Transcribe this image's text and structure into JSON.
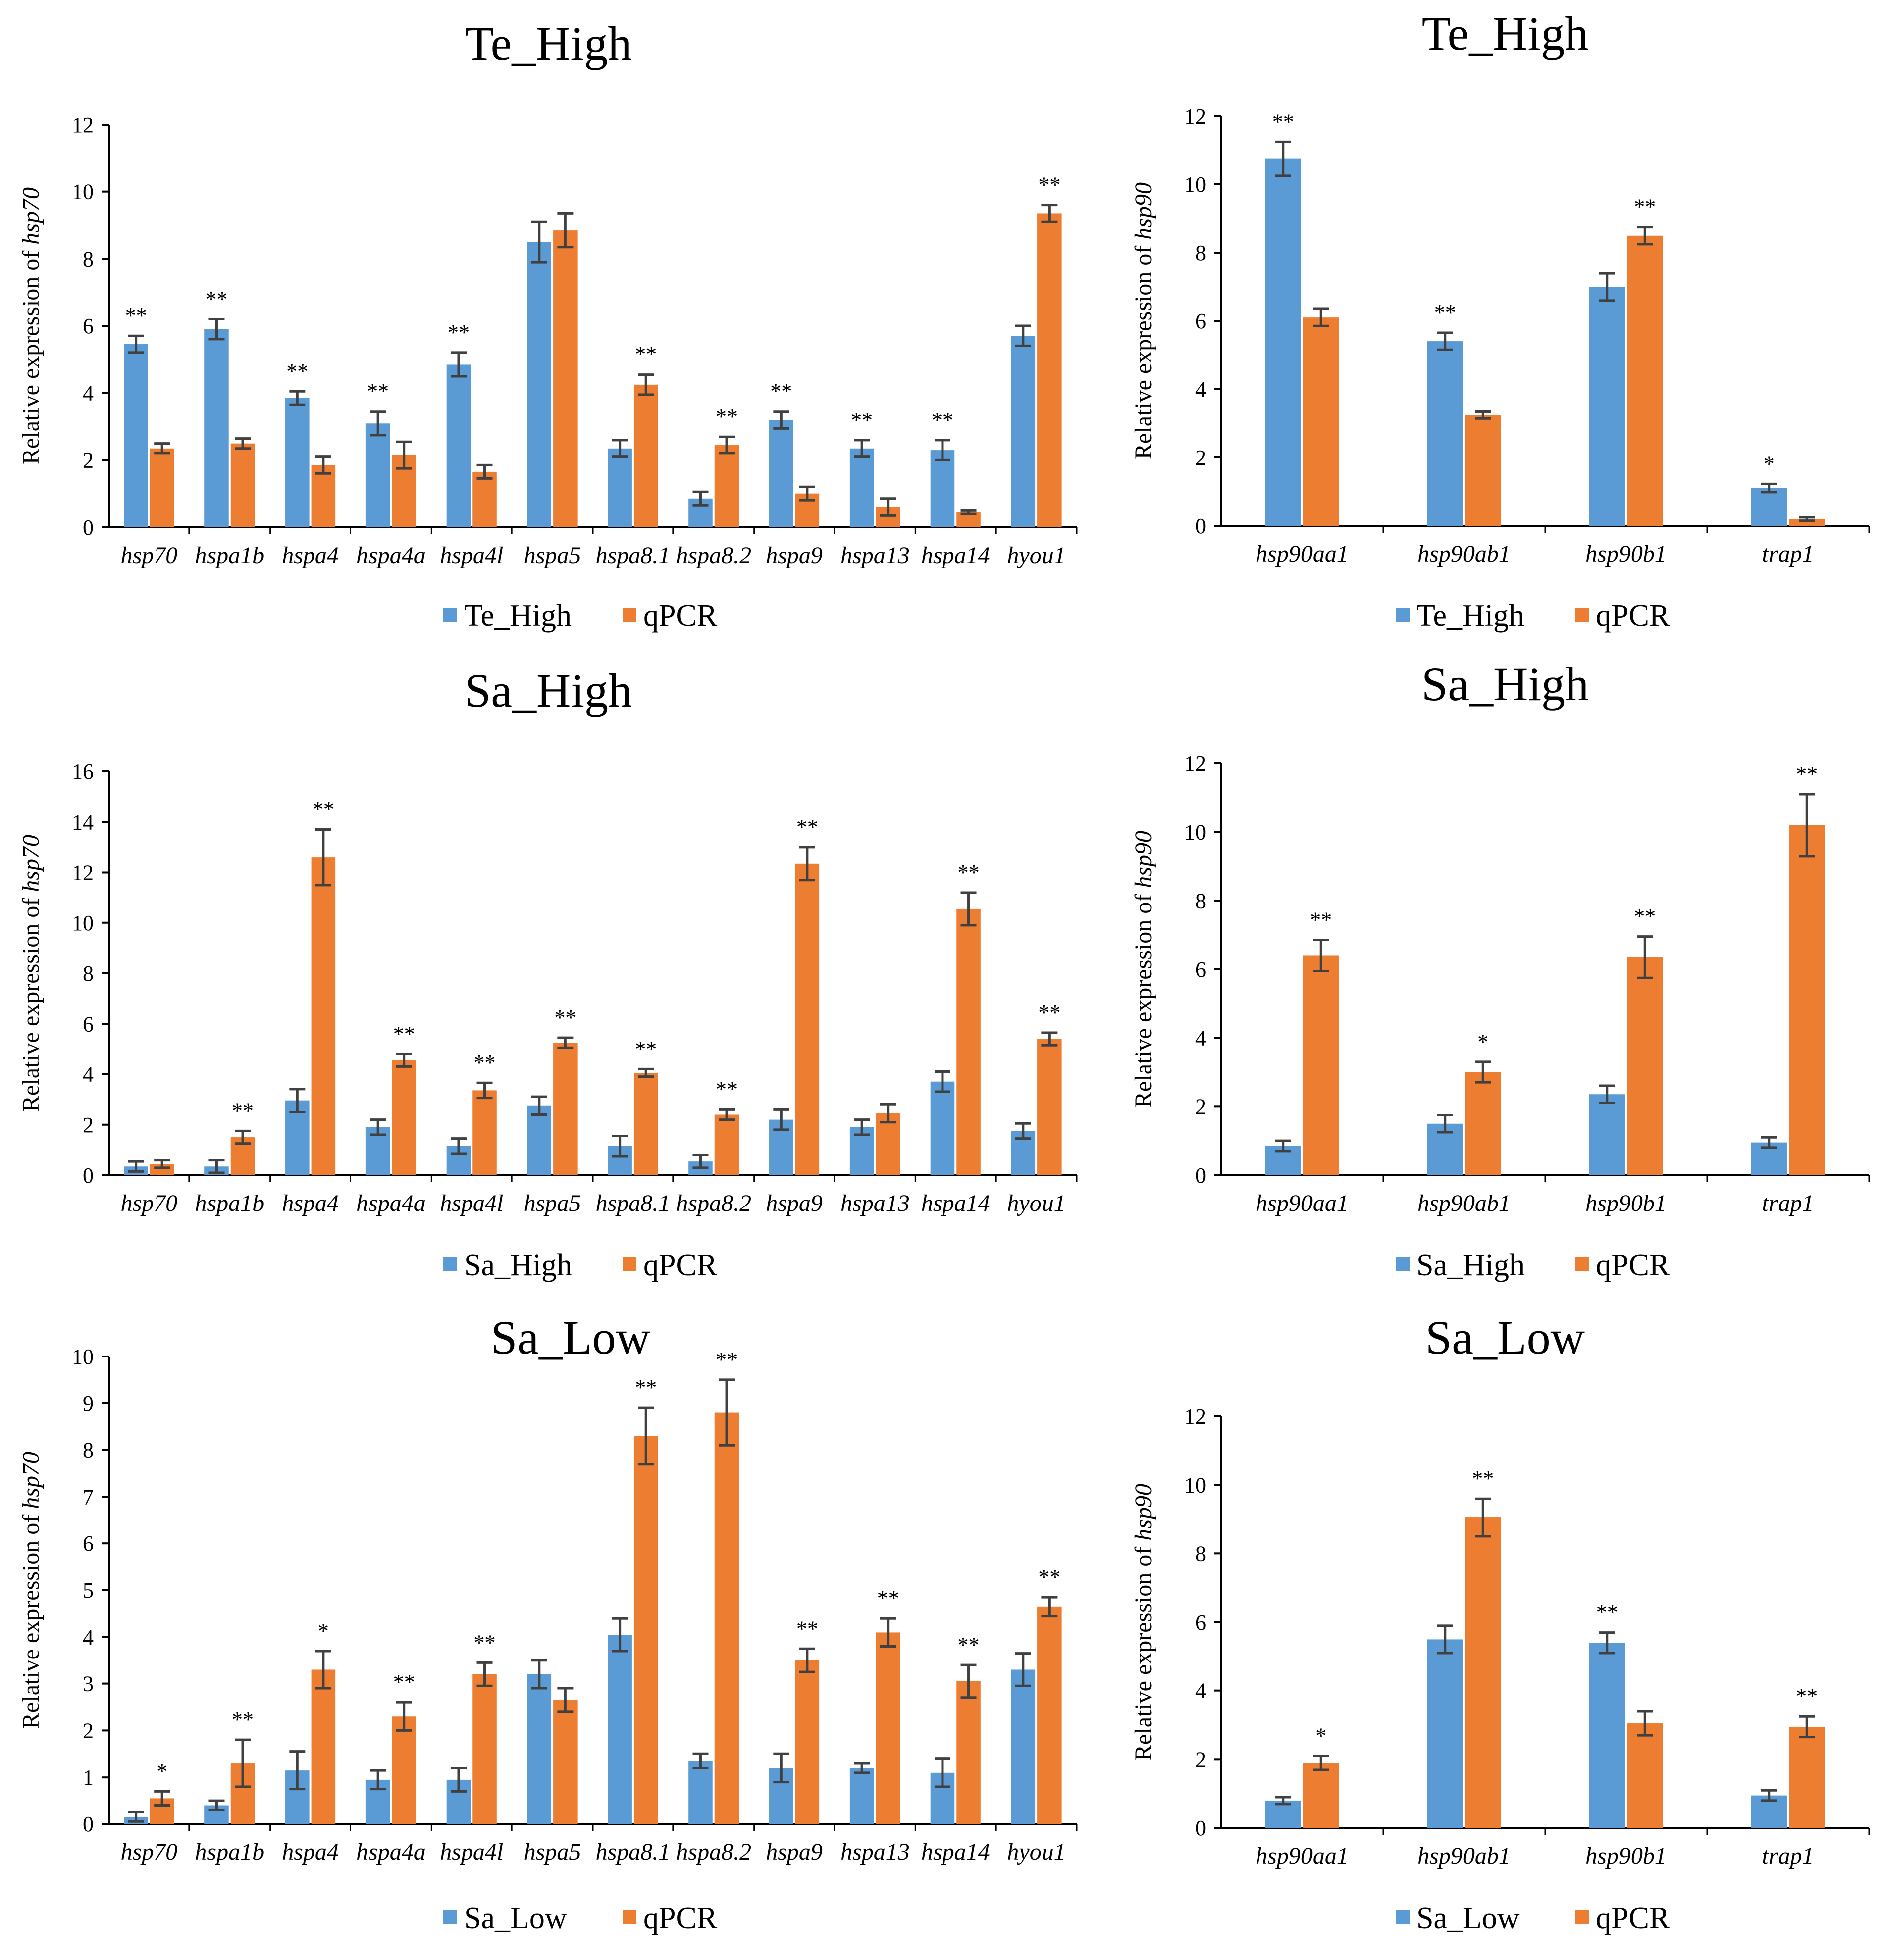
{
  "colors": {
    "series1": "#5B9BD5",
    "series2": "#ED7D31",
    "axis": "#000000",
    "error": "#404040"
  },
  "chart_data": [
    {
      "type": "bar",
      "title": "Te_High",
      "ylabel_prefix": "Relative expression of ",
      "ylabel_gene": "hsp70",
      "xlabel": "",
      "ylim": [
        0,
        12
      ],
      "ystep": 2,
      "categories": [
        "hsp70",
        "hspa1b",
        "hspa4",
        "hspa4a",
        "hspa4l",
        "hspa5",
        "hspa8.1",
        "hspa8.2",
        "hspa9",
        "hspa13",
        "hspa14",
        "hyou1"
      ],
      "series": [
        {
          "name": "Te_High",
          "values": [
            5.45,
            5.9,
            3.85,
            3.1,
            4.85,
            8.5,
            2.35,
            0.85,
            3.2,
            2.35,
            2.3,
            5.7
          ],
          "errors": [
            0.25,
            0.3,
            0.2,
            0.35,
            0.35,
            0.6,
            0.25,
            0.2,
            0.25,
            0.25,
            0.3,
            0.3
          ]
        },
        {
          "name": "qPCR",
          "values": [
            2.35,
            2.5,
            1.85,
            2.15,
            1.65,
            8.85,
            4.25,
            2.45,
            1.0,
            0.6,
            0.45,
            9.35
          ],
          "errors": [
            0.15,
            0.15,
            0.25,
            0.4,
            0.2,
            0.5,
            0.3,
            0.25,
            0.2,
            0.25,
            0.05,
            0.25
          ]
        }
      ],
      "significance": [
        {
          "category": "hsp70",
          "series": "Te_High",
          "mark": "**"
        },
        {
          "category": "hspa1b",
          "series": "Te_High",
          "mark": "**"
        },
        {
          "category": "hspa4",
          "series": "Te_High",
          "mark": "**"
        },
        {
          "category": "hspa4a",
          "series": "Te_High",
          "mark": "**"
        },
        {
          "category": "hspa4l",
          "series": "Te_High",
          "mark": "**"
        },
        {
          "category": "hspa8.1",
          "series": "qPCR",
          "mark": "**"
        },
        {
          "category": "hspa8.2",
          "series": "qPCR",
          "mark": "**"
        },
        {
          "category": "hspa9",
          "series": "Te_High",
          "mark": "**"
        },
        {
          "category": "hspa13",
          "series": "Te_High",
          "mark": "**"
        },
        {
          "category": "hspa14",
          "series": "Te_High",
          "mark": "**"
        },
        {
          "category": "hyou1",
          "series": "qPCR",
          "mark": "**"
        }
      ],
      "legend": [
        "Te_High",
        "qPCR"
      ]
    },
    {
      "type": "bar",
      "title": "Te_High",
      "ylabel_prefix": "Relative expression of ",
      "ylabel_gene": "hsp90",
      "xlabel": "",
      "ylim": [
        0,
        12
      ],
      "ystep": 2,
      "categories": [
        "hsp90aa1",
        "hsp90ab1",
        "hsp90b1",
        "trap1"
      ],
      "series": [
        {
          "name": "Te_High",
          "values": [
            10.75,
            5.4,
            7.0,
            1.1
          ],
          "errors": [
            0.5,
            0.25,
            0.4,
            0.12
          ]
        },
        {
          "name": "qPCR",
          "values": [
            6.1,
            3.25,
            8.5,
            0.2
          ],
          "errors": [
            0.25,
            0.1,
            0.25,
            0.05
          ]
        }
      ],
      "significance": [
        {
          "category": "hsp90aa1",
          "series": "Te_High",
          "mark": "**"
        },
        {
          "category": "hsp90ab1",
          "series": "Te_High",
          "mark": "**"
        },
        {
          "category": "hsp90b1",
          "series": "qPCR",
          "mark": "**"
        },
        {
          "category": "trap1",
          "series": "Te_High",
          "mark": "*"
        }
      ],
      "legend": [
        "Te_High",
        "qPCR"
      ]
    },
    {
      "type": "bar",
      "title": "Sa_High",
      "ylabel_prefix": "Relative expression of ",
      "ylabel_gene": "hsp70",
      "xlabel": "",
      "ylim": [
        0,
        16
      ],
      "ystep": 2,
      "categories": [
        "hsp70",
        "hspa1b",
        "hspa4",
        "hspa4a",
        "hspa4l",
        "hspa5",
        "hspa8.1",
        "hspa8.2",
        "hspa9",
        "hspa13",
        "hspa14",
        "hyou1"
      ],
      "series": [
        {
          "name": "Sa_High",
          "values": [
            0.35,
            0.35,
            2.95,
            1.9,
            1.15,
            2.75,
            1.15,
            0.55,
            2.2,
            1.9,
            3.7,
            1.75
          ],
          "errors": [
            0.2,
            0.25,
            0.45,
            0.3,
            0.3,
            0.35,
            0.4,
            0.25,
            0.4,
            0.3,
            0.4,
            0.3
          ]
        },
        {
          "name": "qPCR",
          "values": [
            0.45,
            1.5,
            12.6,
            4.55,
            3.35,
            5.25,
            4.05,
            2.4,
            12.35,
            2.45,
            10.55,
            5.4
          ],
          "errors": [
            0.15,
            0.25,
            1.1,
            0.25,
            0.3,
            0.2,
            0.15,
            0.2,
            0.65,
            0.35,
            0.65,
            0.25
          ]
        }
      ],
      "significance": [
        {
          "category": "hspa1b",
          "series": "qPCR",
          "mark": "**"
        },
        {
          "category": "hspa4",
          "series": "qPCR",
          "mark": "**"
        },
        {
          "category": "hspa4a",
          "series": "qPCR",
          "mark": "**"
        },
        {
          "category": "hspa4l",
          "series": "qPCR",
          "mark": "**"
        },
        {
          "category": "hspa5",
          "series": "qPCR",
          "mark": "**"
        },
        {
          "category": "hspa8.1",
          "series": "qPCR",
          "mark": "**"
        },
        {
          "category": "hspa8.2",
          "series": "qPCR",
          "mark": "**"
        },
        {
          "category": "hspa9",
          "series": "qPCR",
          "mark": "**"
        },
        {
          "category": "hspa14",
          "series": "qPCR",
          "mark": "**"
        },
        {
          "category": "hyou1",
          "series": "qPCR",
          "mark": "**"
        }
      ],
      "legend": [
        "Sa_High",
        "qPCR"
      ]
    },
    {
      "type": "bar",
      "title": "Sa_High",
      "ylabel_prefix": "Relative expression of ",
      "ylabel_gene": "hsp90",
      "xlabel": "",
      "ylim": [
        0,
        12
      ],
      "ystep": 2,
      "categories": [
        "hsp90aa1",
        "hsp90ab1",
        "hsp90b1",
        "trap1"
      ],
      "series": [
        {
          "name": "Sa_High",
          "values": [
            0.85,
            1.5,
            2.35,
            0.95
          ],
          "errors": [
            0.15,
            0.25,
            0.25,
            0.15
          ]
        },
        {
          "name": "qPCR",
          "values": [
            6.4,
            3.0,
            6.35,
            10.2
          ],
          "errors": [
            0.45,
            0.3,
            0.6,
            0.9
          ]
        }
      ],
      "significance": [
        {
          "category": "hsp90aa1",
          "series": "qPCR",
          "mark": "**"
        },
        {
          "category": "hsp90ab1",
          "series": "qPCR",
          "mark": "*"
        },
        {
          "category": "hsp90b1",
          "series": "qPCR",
          "mark": "**"
        },
        {
          "category": "trap1",
          "series": "qPCR",
          "mark": "**"
        }
      ],
      "legend": [
        "Sa_High",
        "qPCR"
      ]
    },
    {
      "type": "bar",
      "title": "Sa_Low",
      "ylabel_prefix": "Relative expression of ",
      "ylabel_gene": "hsp70",
      "xlabel": "",
      "ylim": [
        0,
        10
      ],
      "ystep": 1,
      "categories": [
        "hsp70",
        "hspa1b",
        "hspa4",
        "hspa4a",
        "hspa4l",
        "hspa5",
        "hspa8.1",
        "hspa8.2",
        "hspa9",
        "hspa13",
        "hspa14",
        "hyou1"
      ],
      "series": [
        {
          "name": "Sa_Low",
          "values": [
            0.15,
            0.4,
            1.15,
            0.95,
            0.95,
            3.2,
            4.05,
            1.35,
            1.2,
            1.2,
            1.1,
            3.3
          ],
          "errors": [
            0.1,
            0.1,
            0.4,
            0.2,
            0.25,
            0.3,
            0.35,
            0.15,
            0.3,
            0.1,
            0.3,
            0.35
          ]
        },
        {
          "name": "qPCR",
          "values": [
            0.55,
            1.3,
            3.3,
            2.3,
            3.2,
            2.65,
            8.3,
            8.8,
            3.5,
            4.1,
            3.05,
            4.65
          ],
          "errors": [
            0.15,
            0.5,
            0.4,
            0.3,
            0.25,
            0.25,
            0.6,
            0.7,
            0.25,
            0.3,
            0.35,
            0.2
          ]
        }
      ],
      "significance": [
        {
          "category": "hsp70",
          "series": "qPCR",
          "mark": "*"
        },
        {
          "category": "hspa1b",
          "series": "qPCR",
          "mark": "**"
        },
        {
          "category": "hspa4",
          "series": "qPCR",
          "mark": "*"
        },
        {
          "category": "hspa4a",
          "series": "qPCR",
          "mark": "**"
        },
        {
          "category": "hspa4l",
          "series": "qPCR",
          "mark": "**"
        },
        {
          "category": "hspa8.1",
          "series": "qPCR",
          "mark": "**"
        },
        {
          "category": "hspa8.2",
          "series": "qPCR",
          "mark": "**"
        },
        {
          "category": "hspa9",
          "series": "qPCR",
          "mark": "**"
        },
        {
          "category": "hspa13",
          "series": "qPCR",
          "mark": "**"
        },
        {
          "category": "hspa14",
          "series": "qPCR",
          "mark": "**"
        },
        {
          "category": "hyou1",
          "series": "qPCR",
          "mark": "**"
        }
      ],
      "legend": [
        "Sa_Low",
        "qPCR"
      ]
    },
    {
      "type": "bar",
      "title": "Sa_Low",
      "ylabel_prefix": "Relative expression of ",
      "ylabel_gene": "hsp90",
      "xlabel": "",
      "ylim": [
        0,
        12
      ],
      "ystep": 2,
      "categories": [
        "hsp90aa1",
        "hsp90ab1",
        "hsp90b1",
        "trap1"
      ],
      "series": [
        {
          "name": "Sa_Low",
          "values": [
            0.8,
            5.5,
            5.4,
            0.95
          ],
          "errors": [
            0.1,
            0.4,
            0.3,
            0.15
          ]
        },
        {
          "name": "qPCR",
          "values": [
            1.9,
            9.05,
            3.05,
            2.95
          ],
          "errors": [
            0.2,
            0.55,
            0.35,
            0.3
          ]
        }
      ],
      "significance": [
        {
          "category": "hsp90aa1",
          "series": "qPCR",
          "mark": "*"
        },
        {
          "category": "hsp90ab1",
          "series": "qPCR",
          "mark": "**"
        },
        {
          "category": "hsp90b1",
          "series": "Sa_Low",
          "mark": "**"
        },
        {
          "category": "trap1",
          "series": "qPCR",
          "mark": "**"
        }
      ],
      "legend": [
        "Sa_Low",
        "qPCR"
      ]
    }
  ]
}
